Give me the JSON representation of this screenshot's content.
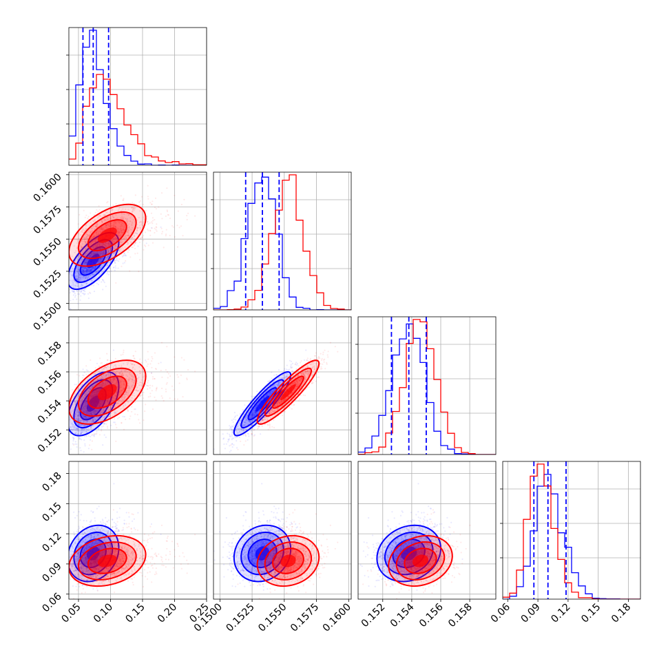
{
  "chart_data": {
    "type": "corner",
    "colors": {
      "blue": "#0000ff",
      "red": "#ff0000"
    },
    "grid": true,
    "n_params": 4,
    "params": [
      {
        "range": [
          0.035,
          0.25
        ],
        "ticks": [
          0.05,
          0.1,
          0.15,
          0.2,
          0.25
        ],
        "tick_labels": [
          "0.05",
          "0.10",
          "0.15",
          "0.20",
          "0.25"
        ]
      },
      {
        "range": [
          0.1495,
          0.1602
        ],
        "ticks": [
          0.15,
          0.1525,
          0.155,
          0.1575,
          0.16
        ],
        "tick_labels": [
          "0.1500",
          "0.1525",
          "0.1550",
          "0.1575",
          "0.1600"
        ]
      },
      {
        "range": [
          0.1503,
          0.1598
        ],
        "ticks": [
          0.152,
          0.154,
          0.156,
          0.158
        ],
        "tick_labels": [
          "0.152",
          "0.154",
          "0.156",
          "0.158"
        ]
      },
      {
        "range": [
          0.055,
          0.192
        ],
        "ticks": [
          0.06,
          0.09,
          0.12,
          0.15,
          0.18
        ],
        "tick_labels": [
          "0.06",
          "0.09",
          "0.12",
          "0.15",
          "0.18"
        ]
      }
    ],
    "series": [
      {
        "color": "blue",
        "mean": [
          0.073,
          0.1533,
          0.1538,
          0.1005
        ],
        "std": [
          0.02,
          0.0011,
          0.0011,
          0.014
        ],
        "corr": [
          [
            1,
            0.65,
            0.55,
            0.2
          ],
          [
            0.65,
            1,
            0.9,
            0.15
          ],
          [
            0.55,
            0.9,
            1,
            0.18
          ],
          [
            0.2,
            0.15,
            0.18,
            1
          ]
        ],
        "quantiles": [
          [
            0.057,
            0.073,
            0.097
          ],
          [
            0.152,
            0.1533,
            0.1546
          ],
          [
            0.1526,
            0.1538,
            0.155
          ],
          [
            0.086,
            0.1,
            0.118
          ]
        ]
      },
      {
        "color": "red",
        "mean": [
          0.095,
          0.1553,
          0.1546,
          0.093
        ],
        "std": [
          0.03,
          0.0012,
          0.0011,
          0.0125
        ],
        "corr": [
          [
            1,
            0.55,
            0.5,
            0.25
          ],
          [
            0.55,
            1,
            0.9,
            0.15
          ],
          [
            0.5,
            0.9,
            1,
            0.2
          ],
          [
            0.25,
            0.15,
            0.2,
            1
          ]
        ]
      }
    ]
  }
}
